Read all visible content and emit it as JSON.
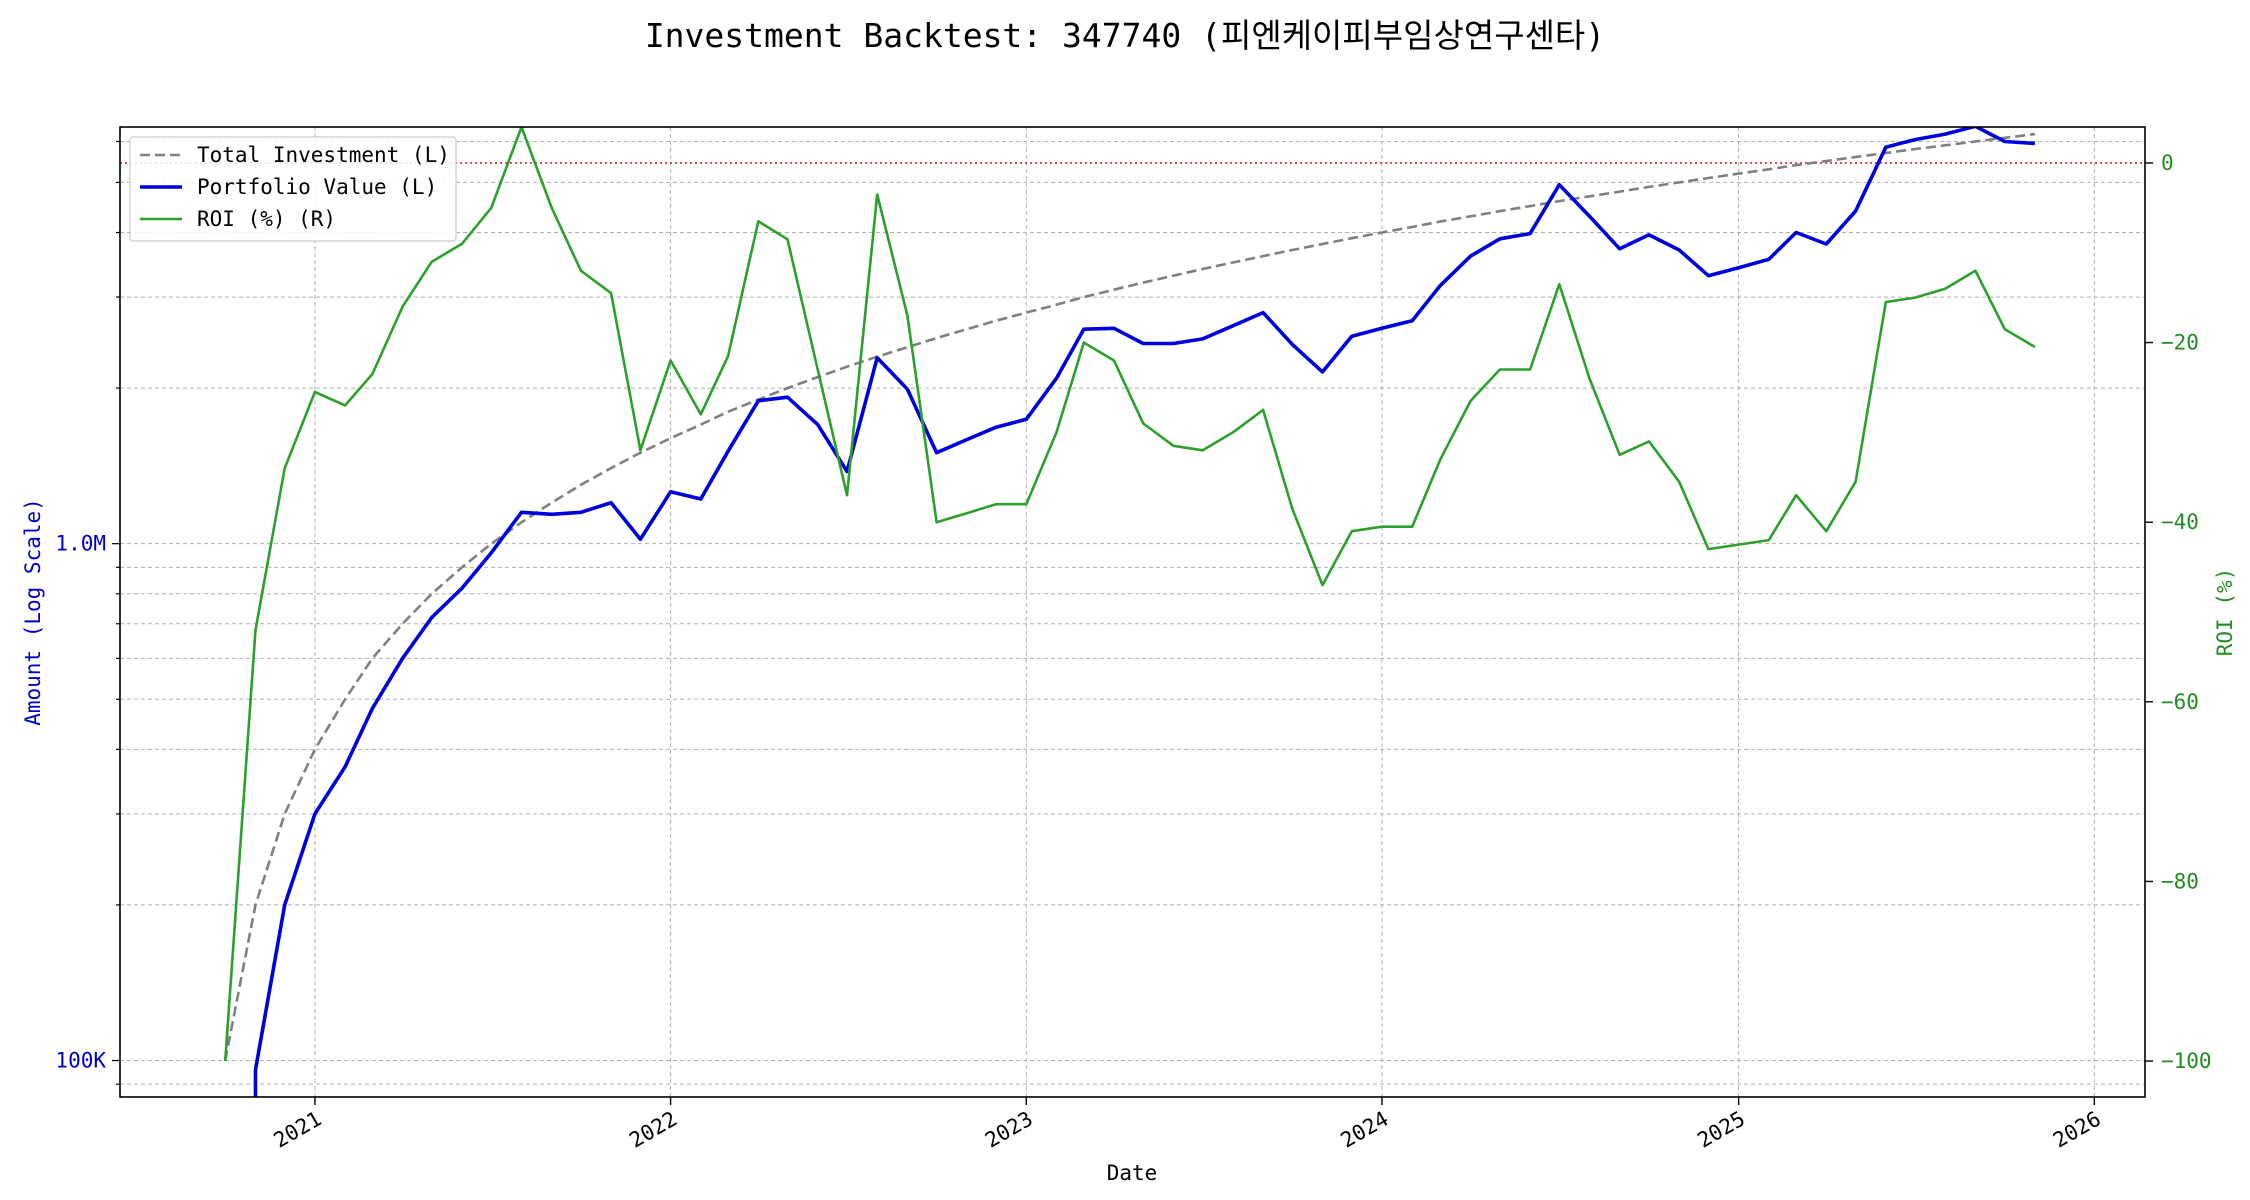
{
  "chart_data": {
    "type": "line",
    "title": "Investment Backtest: 347740 (피엔케이피부임상연구센타)",
    "xlabel": "Date",
    "ylabel_left": "Amount (Log Scale)",
    "ylabel_right": "ROI (%)",
    "left_axis": {
      "scale": "log",
      "ylim": [
        85000,
        6400000
      ],
      "ticks": [
        100000,
        1000000
      ],
      "tick_labels": [
        "100K",
        "1.0M"
      ]
    },
    "right_axis": {
      "ylim": [
        -104,
        4
      ],
      "ticks": [
        0,
        -20,
        -40,
        -60,
        -80,
        -100
      ],
      "tick_labels": [
        "0",
        "−20",
        "−40",
        "−60",
        "−80",
        "−100"
      ]
    },
    "x_axis": {
      "xlim": [
        "2020-06-15",
        "2026-02-22"
      ],
      "ticks": [
        "2021-01-01",
        "2022-01-01",
        "2023-01-01",
        "2024-01-01",
        "2025-01-01",
        "2026-01-01"
      ],
      "tick_labels": [
        "2021",
        "2022",
        "2023",
        "2024",
        "2025",
        "2026"
      ]
    },
    "grid": true,
    "legend_position": "top-left",
    "zero_line": {
      "value": 0,
      "axis": "right",
      "color": "#d62728",
      "style": "dotted"
    },
    "x": [
      "2020-10-01",
      "2020-11-01",
      "2020-12-01",
      "2021-01-01",
      "2021-02-01",
      "2021-03-01",
      "2021-04-01",
      "2021-05-01",
      "2021-06-01",
      "2021-07-01",
      "2021-08-01",
      "2021-09-01",
      "2021-10-01",
      "2021-11-01",
      "2021-12-01",
      "2022-01-01",
      "2022-02-01",
      "2022-03-01",
      "2022-04-01",
      "2022-05-01",
      "2022-06-01",
      "2022-07-01",
      "2022-08-01",
      "2022-09-01",
      "2022-10-01",
      "2022-11-01",
      "2022-12-01",
      "2023-01-01",
      "2023-02-01",
      "2023-03-01",
      "2023-04-01",
      "2023-05-01",
      "2023-06-01",
      "2023-07-01",
      "2023-08-01",
      "2023-09-01",
      "2023-10-01",
      "2023-11-01",
      "2023-12-01",
      "2024-01-01",
      "2024-02-01",
      "2024-03-01",
      "2024-04-01",
      "2024-05-01",
      "2024-06-01",
      "2024-07-01",
      "2024-08-01",
      "2024-09-01",
      "2024-10-01",
      "2024-11-01",
      "2024-12-01",
      "2025-01-01",
      "2025-02-01",
      "2025-03-01",
      "2025-04-01",
      "2025-05-01",
      "2025-06-01",
      "2025-07-01",
      "2025-08-01",
      "2025-09-01",
      "2025-10-01",
      "2025-11-01"
    ],
    "series": [
      {
        "name": "Total Investment (L)",
        "axis": "left",
        "color": "#7f7f7f",
        "style": "dashed",
        "values": [
          100000,
          200000,
          300000,
          400000,
          500000,
          600000,
          700000,
          800000,
          900000,
          1000000,
          1100000,
          1200000,
          1300000,
          1400000,
          1500000,
          1600000,
          1700000,
          1800000,
          1900000,
          2000000,
          2100000,
          2200000,
          2300000,
          2400000,
          2500000,
          2600000,
          2700000,
          2800000,
          2900000,
          3000000,
          3100000,
          3200000,
          3300000,
          3400000,
          3500000,
          3600000,
          3700000,
          3800000,
          3900000,
          4000000,
          4100000,
          4200000,
          4300000,
          4400000,
          4500000,
          4600000,
          4700000,
          4800000,
          4900000,
          5000000,
          5100000,
          5200000,
          5300000,
          5400000,
          5500000,
          5600000,
          5700000,
          5800000,
          5900000,
          6000000,
          6100000,
          6200000
        ]
      },
      {
        "name": "Portfolio Value (L)",
        "axis": "left",
        "color": "#0000dd",
        "style": "solid",
        "values": [
          null,
          96000,
          200000,
          300000,
          370000,
          480000,
          600000,
          720000,
          820000,
          960000,
          1150000,
          1140000,
          1150000,
          1200000,
          1020000,
          1260000,
          1220000,
          1510000,
          1890000,
          1920000,
          1700000,
          1380000,
          2290000,
          1990000,
          1500000,
          1590000,
          1680000,
          1740000,
          2090000,
          2600000,
          2610000,
          2440000,
          2440000,
          2490000,
          2640000,
          2800000,
          2430000,
          2150000,
          2520000,
          2610000,
          2700000,
          3160000,
          3600000,
          3890000,
          3980000,
          4950000,
          4300000,
          3720000,
          3960000,
          3700000,
          3300000,
          3420000,
          3550000,
          4000000,
          3800000,
          4400000,
          5850000,
          6050000,
          6200000,
          6420000,
          6000000,
          5950000
        ]
      },
      {
        "name": "ROI (%) (R)",
        "axis": "right",
        "color": "#2ca02c",
        "style": "solid",
        "values": [
          -100,
          -52,
          -34,
          -25.5,
          -27,
          -23.5,
          -16,
          -11,
          -9,
          -5,
          4,
          -5,
          -12,
          -14.5,
          -32,
          -22,
          -28,
          -21.5,
          -6.5,
          -8.5,
          -23,
          -37,
          -3.5,
          -17,
          -40,
          -39,
          -38,
          -38,
          -30,
          -20,
          -22,
          -29,
          -31.5,
          -32,
          -30,
          -27.5,
          -38.5,
          -47,
          -41,
          -40.5,
          -40.5,
          -33,
          -26.5,
          -23,
          -23,
          -13.5,
          -24,
          -32.5,
          -31,
          -35.5,
          -43,
          -42.5,
          -42,
          -37,
          -41,
          -35.5,
          -15.5,
          -15,
          -14,
          -12,
          -18.5,
          -20.5
        ]
      }
    ]
  }
}
